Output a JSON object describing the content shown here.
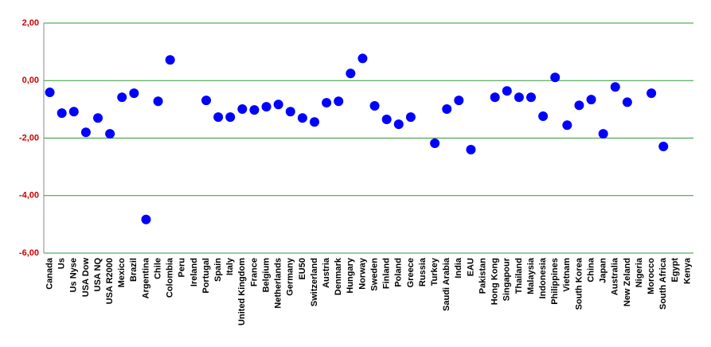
{
  "chart_data": {
    "type": "scatter",
    "categories": [
      "Canada",
      "Us",
      "Us Nyse",
      "USA Dow",
      "USA NQ",
      "USA R2000",
      "Mexico",
      "Brazil",
      "Argentina",
      "Chile",
      "Colombia",
      "Peru",
      "Ireland",
      "Portugal",
      "Spain",
      "Italy",
      "United Kingdom",
      "France",
      "Belgium",
      "Netherlands",
      "Germany",
      "EU50",
      "Switzerland",
      "Austria",
      "Denmark",
      "Hungary",
      "Norway",
      "Sweden",
      "Finland",
      "Poland",
      "Greece",
      "Russia",
      "Turkey",
      "Saudi Arabia",
      "India",
      "EAU",
      "Pakistan",
      "Hong Kong",
      "Singapour",
      "Thailand",
      "Malaysia",
      "Indonesia",
      "Philippines",
      "Vietnam",
      "South Korea",
      "China",
      "Japan",
      "Australia",
      "New Zeland",
      "Nigeria",
      "Morocco",
      "South Africa",
      "Egypt",
      "Kenya"
    ],
    "values": [
      -0.41,
      -1.13,
      -1.08,
      -1.8,
      -1.3,
      -1.85,
      -0.58,
      -0.44,
      -4.83,
      -0.72,
      0.72,
      null,
      null,
      -0.69,
      -1.27,
      -1.27,
      -0.99,
      -1.02,
      -0.91,
      -0.83,
      -1.08,
      -1.3,
      -1.44,
      -0.77,
      -0.72,
      0.25,
      0.77,
      -0.88,
      -1.35,
      -1.52,
      -1.27,
      null,
      -2.18,
      -0.99,
      -0.69,
      -2.4,
      null,
      -0.58,
      -0.36,
      -0.58,
      -0.58,
      -1.24,
      0.11,
      -1.55,
      -0.86,
      -0.66,
      -1.85,
      -0.22,
      -0.75,
      null,
      -0.44,
      -2.29,
      null,
      null
    ],
    "color": "#0000ff",
    "ylim": [
      -6,
      2
    ],
    "yticks": [
      {
        "value": -6,
        "label": "-6,00"
      },
      {
        "value": -4,
        "label": "-4,00"
      },
      {
        "value": -2,
        "label": "-2,00"
      },
      {
        "value": 0,
        "label": "0,00"
      },
      {
        "value": 2,
        "label": "2,00"
      }
    ],
    "grid": true,
    "grid_color": "#339933"
  }
}
